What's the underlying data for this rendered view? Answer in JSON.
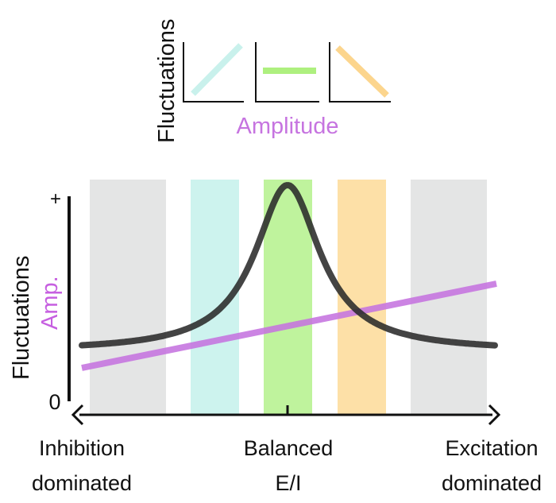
{
  "insets": {
    "ylabel": "Fluctuations",
    "xlabel": "Amplitude",
    "panels": [
      {
        "trend": "increasing",
        "color": "#c9f1ec"
      },
      {
        "trend": "flat",
        "color": "#aef07f"
      },
      {
        "trend": "decreasing",
        "color": "#fcd58d"
      }
    ]
  },
  "main": {
    "ylabel_fluct": "Fluctuations",
    "ylabel_amp": "Amp.",
    "y_top_tick": "+",
    "y_zero": "0",
    "x_left_label": [
      "Inhibition",
      "dominated"
    ],
    "x_center_label": [
      "Balanced",
      "E/I"
    ],
    "x_right_label": [
      "Excitation",
      "dominated"
    ],
    "bands": [
      {
        "color": "#e4e5e5"
      },
      {
        "color": "#cdf3ee"
      },
      {
        "color": "#bff39d"
      },
      {
        "color": "#fde0a7"
      },
      {
        "color": "#e4e5e5"
      }
    ],
    "fluctuation_curve_color": "#2a2a2a",
    "amplitude_line_color": "#c674e0",
    "amp_label_color": "#c65fe0"
  }
}
